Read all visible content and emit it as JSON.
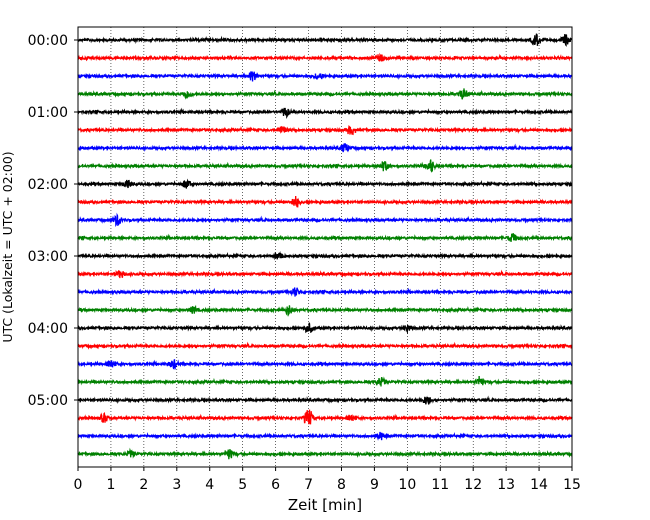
{
  "chart_data": {
    "type": "line",
    "xlabel": "Zeit  [min]",
    "ylabel": "UTC (Lokalzeit = UTC + 02:00)",
    "xlim": [
      0,
      15
    ],
    "x_ticks": [
      "0",
      "1",
      "2",
      "3",
      "4",
      "5",
      "6",
      "7",
      "8",
      "9",
      "10",
      "11",
      "12",
      "13",
      "14",
      "15"
    ],
    "y_ticks": [
      "00:00",
      "01:00",
      "02:00",
      "03:00",
      "04:00",
      "05:00"
    ],
    "grid_x": "dotted",
    "trace_interval_min": 15,
    "trace_colors": [
      "#000000",
      "#ff0000",
      "#0000ff",
      "#008000"
    ],
    "traces": [
      {
        "start": "00:00",
        "events": [
          [
            13.9,
            6
          ],
          [
            14.8,
            5
          ]
        ]
      },
      {
        "start": "00:15",
        "events": [
          [
            9.2,
            3
          ]
        ]
      },
      {
        "start": "00:30",
        "events": [
          [
            5.3,
            4.5
          ],
          [
            7.3,
            3
          ]
        ]
      },
      {
        "start": "00:45",
        "events": [
          [
            3.3,
            4
          ],
          [
            11.7,
            5
          ]
        ]
      },
      {
        "start": "01:00",
        "events": [
          [
            6.3,
            4.5
          ]
        ]
      },
      {
        "start": "01:15",
        "events": [
          [
            6.2,
            3.5
          ],
          [
            8.3,
            4
          ]
        ]
      },
      {
        "start": "01:30",
        "events": [
          [
            8.1,
            4
          ]
        ]
      },
      {
        "start": "01:45",
        "events": [
          [
            9.3,
            4.5
          ],
          [
            10.7,
            6
          ]
        ]
      },
      {
        "start": "02:00",
        "events": [
          [
            1.5,
            3.5
          ],
          [
            3.3,
            4
          ]
        ]
      },
      {
        "start": "02:15",
        "events": [
          [
            6.6,
            5.5
          ]
        ]
      },
      {
        "start": "02:30",
        "events": [
          [
            1.2,
            5
          ]
        ]
      },
      {
        "start": "02:45",
        "events": [
          [
            13.2,
            4
          ]
        ]
      },
      {
        "start": "03:00",
        "events": [
          [
            6.1,
            3
          ]
        ]
      },
      {
        "start": "03:15",
        "events": [
          [
            1.3,
            3.5
          ]
        ]
      },
      {
        "start": "03:30",
        "events": [
          [
            6.6,
            4
          ]
        ]
      },
      {
        "start": "03:45",
        "events": [
          [
            6.4,
            4.5
          ],
          [
            3.5,
            3
          ]
        ]
      },
      {
        "start": "04:00",
        "events": [
          [
            7.0,
            4.5
          ],
          [
            10.0,
            3
          ]
        ]
      },
      {
        "start": "04:15",
        "events": []
      },
      {
        "start": "04:30",
        "events": [
          [
            1.0,
            4
          ],
          [
            2.9,
            4
          ]
        ]
      },
      {
        "start": "04:45",
        "events": [
          [
            9.2,
            4
          ],
          [
            12.2,
            4
          ]
        ]
      },
      {
        "start": "05:00",
        "events": [
          [
            10.6,
            4.5
          ]
        ]
      },
      {
        "start": "05:15",
        "events": [
          [
            7.0,
            8
          ],
          [
            0.8,
            4
          ],
          [
            8.3,
            3.5
          ]
        ]
      },
      {
        "start": "05:30",
        "events": [
          [
            9.2,
            3.5
          ]
        ]
      },
      {
        "start": "05:45",
        "events": [
          [
            4.6,
            4.5
          ],
          [
            1.6,
            3
          ]
        ]
      }
    ]
  }
}
